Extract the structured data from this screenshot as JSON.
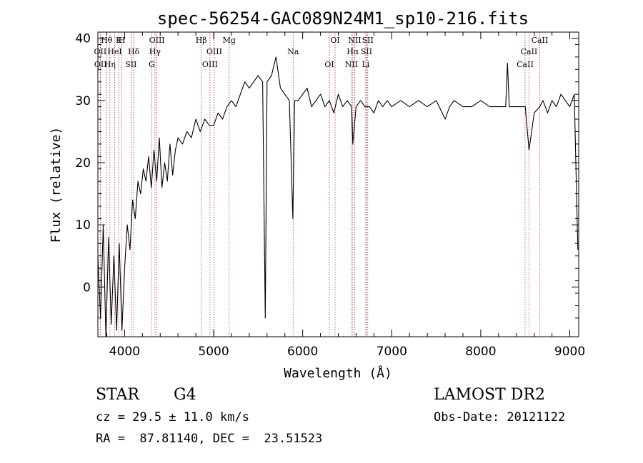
{
  "chart_data": {
    "type": "line",
    "title": "spec-56254-GAC089N24M1_sp10-216.fits",
    "xlabel": "Wavelength (Å)",
    "ylabel": "Flux (relative)",
    "xlim": [
      3700,
      9100
    ],
    "ylim": [
      -8,
      41
    ],
    "xticks": [
      4000,
      5000,
      6000,
      7000,
      8000,
      9000
    ],
    "yticks": [
      0,
      10,
      20,
      30,
      40
    ],
    "grid": false,
    "series": [
      {
        "x": [
          3700,
          3730,
          3760,
          3790,
          3820,
          3850,
          3880,
          3910,
          3940,
          3970,
          4000,
          4030,
          4060,
          4090,
          4120,
          4150,
          4180,
          4210,
          4240,
          4270,
          4300,
          4330,
          4360,
          4390,
          4420,
          4450,
          4480,
          4510,
          4540,
          4570,
          4600,
          4650,
          4700,
          4750,
          4800,
          4850,
          4900,
          4950,
          5000,
          5050,
          5100,
          5150,
          5200,
          5250,
          5300,
          5350,
          5400,
          5450,
          5500,
          5550,
          5580,
          5600,
          5650,
          5700,
          5750,
          5800,
          5850,
          5890,
          5910,
          5950,
          6000,
          6050,
          6100,
          6150,
          6200,
          6250,
          6300,
          6350,
          6400,
          6450,
          6500,
          6550,
          6563,
          6600,
          6650,
          6700,
          6750,
          6800,
          6850,
          6900,
          6950,
          7000,
          7100,
          7200,
          7300,
          7400,
          7500,
          7600,
          7650,
          7700,
          7800,
          7900,
          8000,
          8100,
          8200,
          8280,
          8300,
          8320,
          8400,
          8500,
          8542,
          8600,
          8662,
          8700,
          8750,
          8800,
          8850,
          8900,
          8950,
          9000,
          9050,
          9090
        ],
        "y": [
          5,
          -5,
          10,
          -8,
          8,
          -6,
          5,
          -7,
          7,
          -7,
          3,
          10,
          6,
          14,
          11,
          17,
          15,
          19,
          17,
          21,
          16,
          22,
          17,
          24,
          16,
          20,
          17,
          23,
          18,
          22,
          24,
          23,
          25,
          24,
          27,
          25,
          27,
          26,
          26,
          28,
          27,
          29,
          30,
          29,
          31,
          33,
          32,
          33,
          34,
          33,
          -5,
          33,
          34,
          37,
          32,
          31,
          30,
          11,
          30,
          30,
          31,
          32,
          29,
          30,
          31,
          29,
          30,
          28,
          31,
          29,
          30,
          29,
          23,
          29,
          30,
          29,
          29,
          28,
          30,
          29,
          30,
          29,
          30,
          29,
          30,
          29,
          30,
          27,
          29,
          30,
          29,
          29,
          30,
          29,
          29,
          29,
          36,
          29,
          29,
          29,
          22,
          28,
          29,
          30,
          28,
          30,
          29,
          31,
          30,
          29,
          31,
          6
        ]
      }
    ],
    "line_ids": [
      {
        "label": "Hθ",
        "x": 3798
      },
      {
        "label": "OII",
        "x": 3727
      },
      {
        "label": "OII",
        "x": 3730
      },
      {
        "label": "K",
        "x": 3934
      },
      {
        "label": "HeI",
        "x": 3889
      },
      {
        "label": "Hη",
        "x": 3835
      },
      {
        "label": "H",
        "x": 3969
      },
      {
        "label": "Hδ",
        "x": 4102
      },
      {
        "label": "SII",
        "x": 4072
      },
      {
        "label": "OIII",
        "x": 4363
      },
      {
        "label": "Hγ",
        "x": 4341
      },
      {
        "label": "G",
        "x": 4305
      },
      {
        "label": "Hβ",
        "x": 4861
      },
      {
        "label": "OIII",
        "x": 5007
      },
      {
        "label": "OIII",
        "x": 4959
      },
      {
        "label": "Mg",
        "x": 5175
      },
      {
        "label": "Na",
        "x": 5893
      },
      {
        "label": "OI",
        "x": 6300
      },
      {
        "label": "OI",
        "x": 6364
      },
      {
        "label": "Hα",
        "x": 6563
      },
      {
        "label": "NII",
        "x": 6548
      },
      {
        "label": "NII",
        "x": 6584
      },
      {
        "label": "SII",
        "x": 6717
      },
      {
        "label": "Li",
        "x": 6708
      },
      {
        "label": "SII",
        "x": 6731
      },
      {
        "label": "CaII",
        "x": 8542
      },
      {
        "label": "CaII",
        "x": 8498
      },
      {
        "label": "CaII",
        "x": 8662
      }
    ]
  },
  "info": {
    "class_label": "STAR",
    "subclass": "G4",
    "survey": "LAMOST DR2",
    "cz": "cz = 29.5 ± 11.0 km/s",
    "obs_date": "Obs-Date: 20121122",
    "coords": "RA =  87.81140, DEC =  23.51523"
  }
}
